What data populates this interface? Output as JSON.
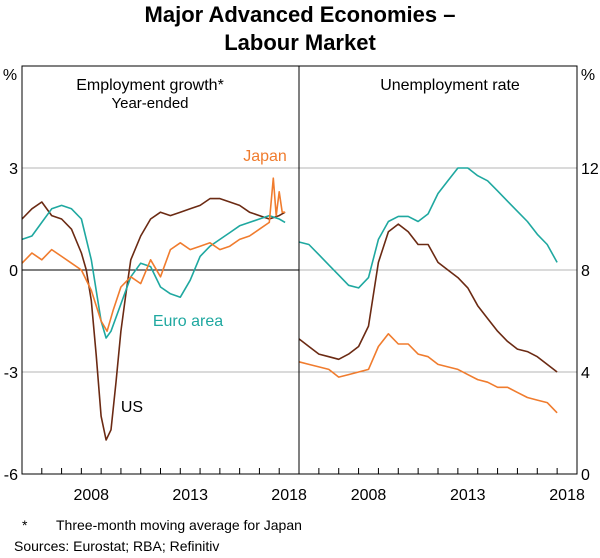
{
  "title": {
    "line1": "Major Advanced Economies –",
    "line2": "Labour Market"
  },
  "chart_data": [
    {
      "type": "line",
      "panel": "left",
      "title": "Employment growth*",
      "subtitle": "Year-ended",
      "unit_label": "%",
      "ylim": [
        -6,
        6
      ],
      "yticks": [
        -6,
        -3,
        0,
        3
      ],
      "xlim": [
        2005.0,
        2019.0
      ],
      "xticks": [
        2008,
        2013,
        2018
      ],
      "series": [
        {
          "name": "US",
          "color": "#6b2a13",
          "x": [
            2005.0,
            2005.5,
            2006.0,
            2006.5,
            2007.0,
            2007.5,
            2008.0,
            2008.25,
            2008.5,
            2008.75,
            2009.0,
            2009.25,
            2009.5,
            2009.75,
            2010.0,
            2010.25,
            2010.5,
            2011.0,
            2011.5,
            2012.0,
            2012.5,
            2013.0,
            2013.5,
            2014.0,
            2014.5,
            2015.0,
            2015.5,
            2016.0,
            2016.5,
            2017.0,
            2017.5,
            2018.0,
            2018.3
          ],
          "y": [
            1.5,
            1.8,
            2.0,
            1.6,
            1.5,
            1.2,
            0.5,
            0.0,
            -0.9,
            -2.5,
            -4.3,
            -5.0,
            -4.7,
            -3.3,
            -1.8,
            -0.7,
            0.3,
            1.0,
            1.5,
            1.7,
            1.6,
            1.7,
            1.8,
            1.9,
            2.1,
            2.1,
            2.0,
            1.9,
            1.7,
            1.6,
            1.5,
            1.6,
            1.7
          ]
        },
        {
          "name": "Euro area",
          "color": "#1fa8a0",
          "x": [
            2005.0,
            2005.5,
            2006.0,
            2006.5,
            2007.0,
            2007.5,
            2008.0,
            2008.5,
            2009.0,
            2009.25,
            2009.5,
            2010.0,
            2010.5,
            2011.0,
            2011.5,
            2012.0,
            2012.5,
            2013.0,
            2013.5,
            2014.0,
            2014.5,
            2015.0,
            2015.5,
            2016.0,
            2016.5,
            2017.0,
            2017.5,
            2018.0,
            2018.3
          ],
          "y": [
            0.9,
            1.0,
            1.4,
            1.8,
            1.9,
            1.8,
            1.5,
            0.3,
            -1.5,
            -2.0,
            -1.8,
            -1.0,
            -0.2,
            0.2,
            0.1,
            -0.5,
            -0.7,
            -0.8,
            -0.3,
            0.4,
            0.7,
            0.9,
            1.1,
            1.3,
            1.4,
            1.5,
            1.6,
            1.5,
            1.4
          ]
        },
        {
          "name": "Japan",
          "color": "#f07c2e",
          "x": [
            2005.0,
            2005.5,
            2006.0,
            2006.5,
            2007.0,
            2007.5,
            2008.0,
            2008.5,
            2009.0,
            2009.3,
            2009.6,
            2010.0,
            2010.5,
            2011.0,
            2011.5,
            2012.0,
            2012.5,
            2013.0,
            2013.5,
            2014.0,
            2014.5,
            2015.0,
            2015.5,
            2016.0,
            2016.5,
            2017.0,
            2017.5,
            2017.7,
            2017.85,
            2018.0,
            2018.15,
            2018.3
          ],
          "y": [
            0.2,
            0.5,
            0.3,
            0.6,
            0.4,
            0.2,
            0.0,
            -0.6,
            -1.5,
            -1.8,
            -1.2,
            -0.5,
            -0.2,
            -0.4,
            0.3,
            -0.2,
            0.6,
            0.8,
            0.6,
            0.7,
            0.8,
            0.6,
            0.7,
            0.9,
            1.0,
            1.2,
            1.4,
            2.7,
            1.6,
            2.3,
            1.7,
            1.7
          ]
        }
      ],
      "annotations": [
        {
          "text": "Japan",
          "series": "Japan"
        },
        {
          "text": "Euro area",
          "series": "Euro area"
        },
        {
          "text": "US",
          "series": "US"
        }
      ]
    },
    {
      "type": "line",
      "panel": "right",
      "title": "Unemployment rate",
      "unit_label": "%",
      "ylim": [
        0,
        16
      ],
      "yticks": [
        0,
        4,
        8,
        12
      ],
      "xlim": [
        2005.0,
        2019.0
      ],
      "xticks": [
        2008,
        2013,
        2018
      ],
      "series": [
        {
          "name": "Euro area",
          "color": "#1fa8a0",
          "x": [
            2005.0,
            2005.5,
            2006.0,
            2006.5,
            2007.0,
            2007.5,
            2008.0,
            2008.5,
            2009.0,
            2009.5,
            2010.0,
            2010.5,
            2011.0,
            2011.5,
            2012.0,
            2012.5,
            2013.0,
            2013.5,
            2014.0,
            2014.5,
            2015.0,
            2015.5,
            2016.0,
            2016.5,
            2017.0,
            2017.5,
            2018.0
          ],
          "y": [
            9.1,
            9.0,
            8.6,
            8.2,
            7.8,
            7.4,
            7.3,
            7.7,
            9.2,
            9.9,
            10.1,
            10.1,
            9.9,
            10.2,
            11.0,
            11.5,
            12.0,
            12.0,
            11.7,
            11.5,
            11.1,
            10.7,
            10.3,
            9.9,
            9.4,
            9.0,
            8.3
          ]
        },
        {
          "name": "US",
          "color": "#6b2a13",
          "x": [
            2005.0,
            2005.5,
            2006.0,
            2006.5,
            2007.0,
            2007.5,
            2008.0,
            2008.5,
            2009.0,
            2009.5,
            2010.0,
            2010.5,
            2011.0,
            2011.5,
            2012.0,
            2012.5,
            2013.0,
            2013.5,
            2014.0,
            2014.5,
            2015.0,
            2015.5,
            2016.0,
            2016.5,
            2017.0,
            2017.5,
            2018.0
          ],
          "y": [
            5.3,
            5.0,
            4.7,
            4.6,
            4.5,
            4.7,
            5.0,
            5.8,
            8.3,
            9.5,
            9.8,
            9.5,
            9.0,
            9.0,
            8.3,
            8.0,
            7.7,
            7.3,
            6.6,
            6.1,
            5.6,
            5.2,
            4.9,
            4.8,
            4.6,
            4.3,
            4.0
          ]
        },
        {
          "name": "Japan",
          "color": "#f07c2e",
          "x": [
            2005.0,
            2005.5,
            2006.0,
            2006.5,
            2007.0,
            2007.5,
            2008.0,
            2008.5,
            2009.0,
            2009.5,
            2010.0,
            2010.5,
            2011.0,
            2011.5,
            2012.0,
            2012.5,
            2013.0,
            2013.5,
            2014.0,
            2014.5,
            2015.0,
            2015.5,
            2016.0,
            2016.5,
            2017.0,
            2017.5,
            2018.0
          ],
          "y": [
            4.4,
            4.3,
            4.2,
            4.1,
            3.8,
            3.9,
            4.0,
            4.1,
            5.0,
            5.5,
            5.1,
            5.1,
            4.7,
            4.6,
            4.3,
            4.2,
            4.1,
            3.9,
            3.7,
            3.6,
            3.4,
            3.4,
            3.2,
            3.0,
            2.9,
            2.8,
            2.4
          ]
        }
      ]
    }
  ],
  "footnote": {
    "star": "*",
    "text": "Three-month moving average for Japan"
  },
  "sources": "Sources: Eurostat; RBA; Refinitiv"
}
